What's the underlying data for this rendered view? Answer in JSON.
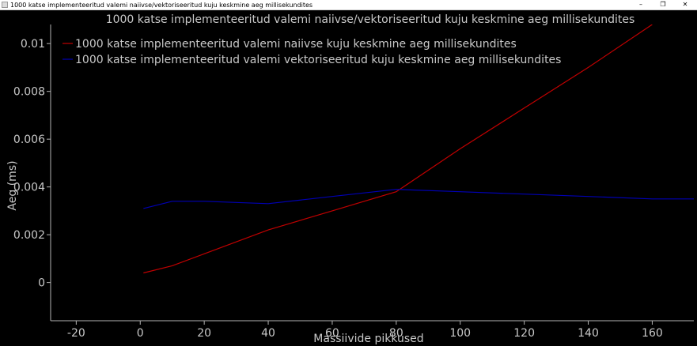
{
  "window": {
    "title": "1000 katse implementeeritud valemi naiivse/vektoriseeritud kuju keskmine aeg millisekundites",
    "controls": {
      "minimize": "–",
      "maximize": "❐",
      "close": "✕"
    }
  },
  "colors": {
    "background": "#000000",
    "axis": "#b4b4b4",
    "text": "#c8c8c8",
    "naive": "#c00000",
    "vectorized": "#0000b4"
  },
  "chart_data": {
    "type": "line",
    "title": "1000 katse implementeeritud valemi naiivse/vektoriseeritud kuju keskmine aeg millisekundites",
    "xlabel": "Massiivide pikkused",
    "ylabel": "Aeg (ms)",
    "xlim": [
      -28,
      173
    ],
    "ylim": [
      -0.0016,
      0.0108
    ],
    "xticks": [
      -20,
      0,
      20,
      40,
      60,
      80,
      100,
      120,
      140,
      160
    ],
    "xtick_labels": [
      "-20",
      "0",
      "20",
      "40",
      "60",
      "80",
      "100",
      "120",
      "140",
      "160"
    ],
    "yticks": [
      0,
      0.002,
      0.004,
      0.006,
      0.008,
      0.01
    ],
    "ytick_labels": [
      "0",
      "0.002",
      "0.004",
      "0.006",
      "0.008",
      "0.01"
    ],
    "legend_position": "top-left",
    "grid": false,
    "series": [
      {
        "name": "1000 katse implementeeritud valemi naiivse kuju keskmine aeg millisekundites",
        "color": "#c00000",
        "x": [
          1,
          10,
          20,
          40,
          60,
          80,
          100,
          120,
          140,
          160
        ],
        "y": [
          0.0004,
          0.0007,
          0.0012,
          0.0022,
          0.003,
          0.0038,
          0.0056,
          0.0073,
          0.009,
          0.0108
        ]
      },
      {
        "name": "1000 katse implementeeritud valemi vektoriseeritud kuju keskmine aeg millisekundites",
        "color": "#0000b4",
        "x": [
          1,
          10,
          20,
          40,
          60,
          80,
          100,
          120,
          140,
          160,
          173
        ],
        "y": [
          0.0031,
          0.0034,
          0.0034,
          0.0033,
          0.0036,
          0.0039,
          0.0038,
          0.0037,
          0.0036,
          0.0035,
          0.0035
        ]
      }
    ]
  }
}
